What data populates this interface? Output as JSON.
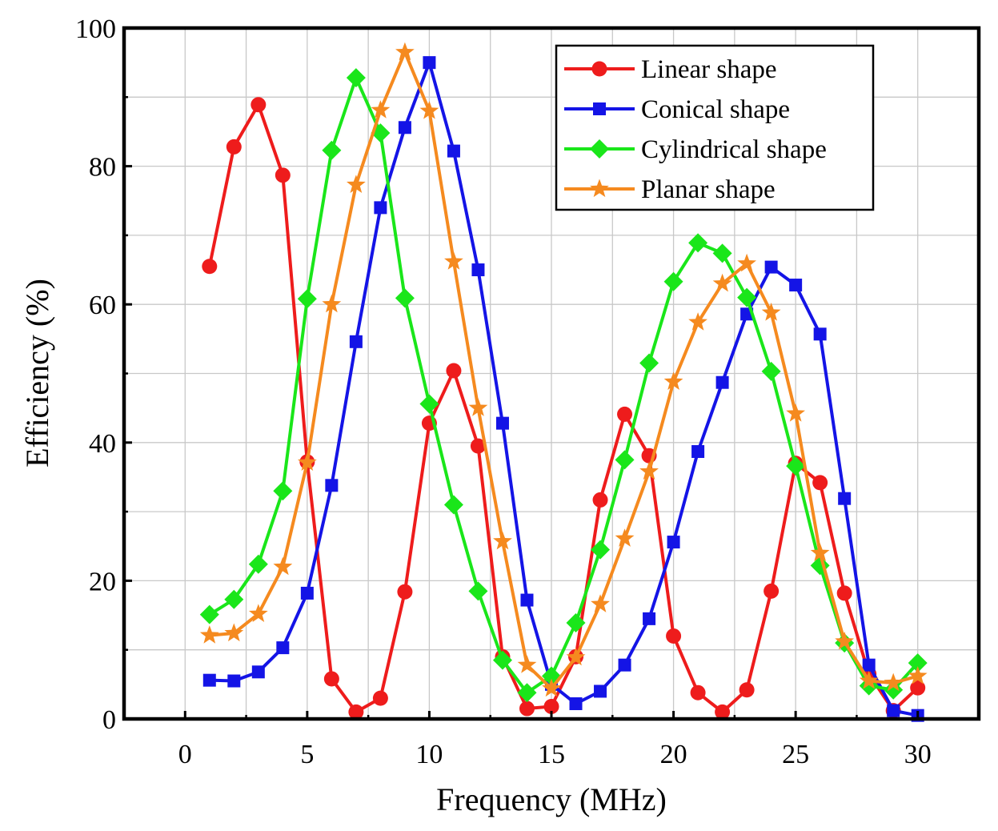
{
  "chart_data": {
    "type": "line",
    "title": "",
    "xlabel": "Frequency (MHz)",
    "ylabel": "Efficiency (%)",
    "xlim": [
      -2.5,
      32.5
    ],
    "ylim": [
      0,
      100
    ],
    "x_ticks": [
      0,
      5,
      10,
      15,
      20,
      25,
      30
    ],
    "y_ticks": [
      0,
      20,
      40,
      60,
      80,
      100
    ],
    "grid": true,
    "legend_position": "top-right",
    "x": [
      1,
      2,
      3,
      4,
      5,
      6,
      7,
      8,
      9,
      10,
      11,
      12,
      13,
      14,
      15,
      16,
      17,
      18,
      19,
      20,
      21,
      22,
      23,
      24,
      25,
      26,
      27,
      28,
      29,
      30
    ],
    "series": [
      {
        "name": "Linear shape",
        "color": "#ee1c1c",
        "marker": "circle",
        "values": [
          65.5,
          82.8,
          88.9,
          78.7,
          37.2,
          5.8,
          1.0,
          3.0,
          18.4,
          42.8,
          50.4,
          39.5,
          9.0,
          1.5,
          1.8,
          9.0,
          31.7,
          44.1,
          38.1,
          12.0,
          3.8,
          1.0,
          4.2,
          18.5,
          37.0,
          34.2,
          18.2,
          6.5,
          1.2,
          4.5
        ]
      },
      {
        "name": "Conical shape",
        "color": "#1414e6",
        "marker": "square",
        "values": [
          5.6,
          5.5,
          6.8,
          10.3,
          18.2,
          33.8,
          54.6,
          74.0,
          85.6,
          95.0,
          82.2,
          65.0,
          42.8,
          17.2,
          5.0,
          2.2,
          4.0,
          7.8,
          14.5,
          25.6,
          38.7,
          48.7,
          58.6,
          65.4,
          62.8,
          55.7,
          31.9,
          7.8,
          1.2,
          0.5
        ]
      },
      {
        "name": "Cylindrical shape",
        "color": "#1ae61a",
        "marker": "diamond",
        "values": [
          15.1,
          17.3,
          22.4,
          33.0,
          60.8,
          82.3,
          92.8,
          84.8,
          60.9,
          45.6,
          31.0,
          18.5,
          8.5,
          3.8,
          6.2,
          13.9,
          24.5,
          37.5,
          51.5,
          63.3,
          68.9,
          67.4,
          61.0,
          50.3,
          36.6,
          22.2,
          11.0,
          4.8,
          4.2,
          8.1
        ]
      },
      {
        "name": "Planar shape",
        "color": "#f58a1f",
        "marker": "star",
        "values": [
          12.1,
          12.4,
          15.2,
          22.0,
          37.1,
          60.0,
          77.3,
          88.1,
          96.5,
          88.0,
          66.2,
          45.0,
          25.7,
          7.8,
          4.4,
          8.9,
          16.6,
          26.1,
          35.8,
          48.8,
          57.4,
          63.0,
          65.9,
          58.8,
          44.2,
          24.0,
          11.2,
          5.5,
          5.2,
          6.2
        ]
      }
    ]
  }
}
